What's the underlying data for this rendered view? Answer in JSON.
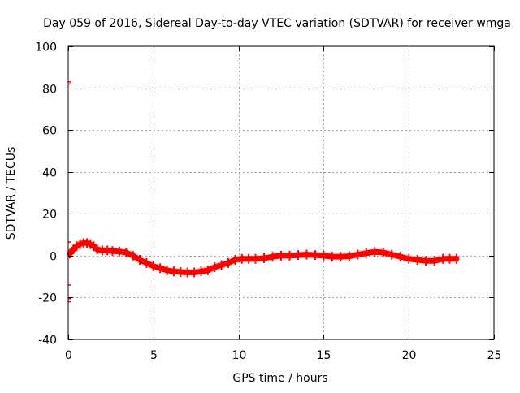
{
  "chart_data": {
    "type": "scatter",
    "title": "Day 059 of 2016, Sidereal Day-to-day VTEC variation (SDTVAR) for receiver wmga",
    "xlabel": "GPS time / hours",
    "ylabel": "SDTVAR / TECUs",
    "xlim": [
      0,
      25
    ],
    "ylim": [
      -40,
      100
    ],
    "x_ticks": [
      0,
      5,
      10,
      15,
      20,
      25
    ],
    "y_ticks": [
      -40,
      -20,
      0,
      20,
      40,
      60,
      80,
      100
    ],
    "x_tick_labels": [
      "0",
      "5",
      "10",
      "15",
      "20",
      "25"
    ],
    "y_tick_labels": [
      "-40",
      "-20",
      "0",
      "20",
      "40",
      "60",
      "80",
      "100"
    ],
    "grid": true,
    "series": [
      {
        "name": "SDTVAR",
        "color": "#ff0000",
        "x": [
          0.1,
          0.3,
          0.5,
          0.7,
          0.9,
          1.1,
          1.3,
          1.5,
          1.7,
          2.0,
          2.3,
          2.6,
          3.0,
          3.4,
          3.8,
          4.2,
          4.6,
          5.0,
          5.4,
          5.8,
          6.2,
          6.6,
          7.0,
          7.4,
          7.8,
          8.2,
          8.6,
          9.0,
          9.4,
          9.8,
          10.2,
          10.6,
          11.0,
          11.5,
          12.0,
          12.5,
          13.0,
          13.5,
          14.0,
          14.5,
          15.0,
          15.5,
          16.0,
          16.5,
          17.0,
          17.5,
          18.0,
          18.5,
          19.0,
          19.5,
          20.0,
          20.5,
          21.0,
          21.5,
          22.0,
          22.4,
          22.8
        ],
        "y": [
          1,
          3,
          4.5,
          5.5,
          6,
          6,
          5.5,
          4.5,
          3,
          2.5,
          2.5,
          2.2,
          2,
          1.5,
          0,
          -2,
          -3.5,
          -5,
          -6,
          -7,
          -7.5,
          -7.8,
          -8,
          -8,
          -7.5,
          -7,
          -5.5,
          -4.5,
          -3.5,
          -2,
          -1.5,
          -1.5,
          -1.5,
          -1.2,
          -0.5,
          0,
          0,
          0.3,
          0.5,
          0.3,
          0,
          -0.5,
          -0.5,
          -0.3,
          0.5,
          1.2,
          1.8,
          1.5,
          0.5,
          -0.5,
          -1.5,
          -2,
          -2.5,
          -2.5,
          -1.5,
          -1.5,
          -1.5
        ]
      }
    ],
    "outliers": [
      {
        "x": 0,
        "y": 83
      },
      {
        "x": 0,
        "y": 82
      },
      {
        "x": 0,
        "y": 6.5
      },
      {
        "x": 0,
        "y": -14
      },
      {
        "x": 0,
        "y": -20.5
      },
      {
        "x": 0,
        "y": -22
      }
    ]
  }
}
